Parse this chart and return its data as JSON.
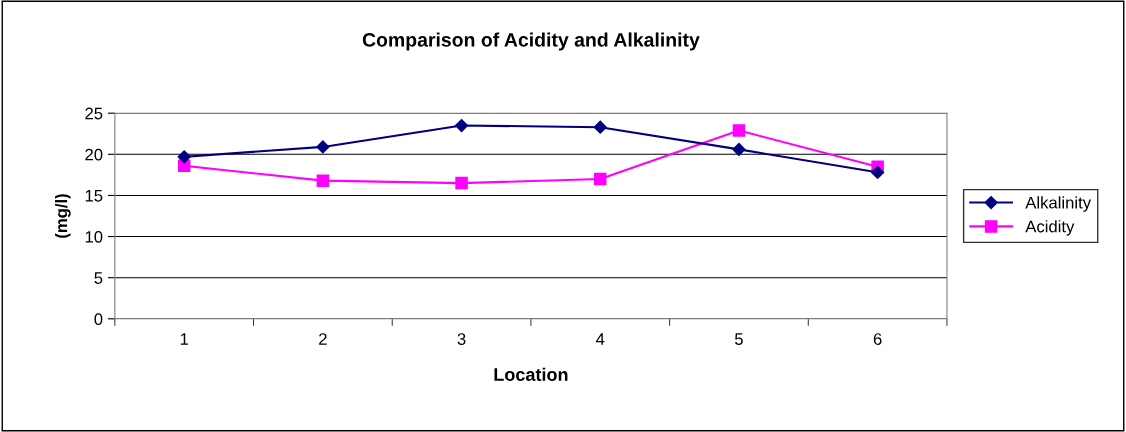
{
  "chart_data": {
    "type": "line",
    "title": "Comparison of Acidity and Alkalinity",
    "xlabel": "Location",
    "ylabel": "(mg/l)",
    "categories": [
      "1",
      "2",
      "3",
      "4",
      "5",
      "6"
    ],
    "series": [
      {
        "name": "Alkalinity",
        "color": "#000080",
        "marker": "diamond",
        "values": [
          19.7,
          20.9,
          23.5,
          23.3,
          20.6,
          17.8
        ]
      },
      {
        "name": "Acidity",
        "color": "#ff00ff",
        "marker": "square",
        "values": [
          18.6,
          16.8,
          16.5,
          17.0,
          22.9,
          18.5
        ]
      }
    ],
    "ylim": [
      0,
      25
    ],
    "yticks": [
      0,
      5,
      10,
      15,
      20,
      25
    ],
    "grid": "y",
    "legend": "right",
    "line_style": "solid"
  }
}
